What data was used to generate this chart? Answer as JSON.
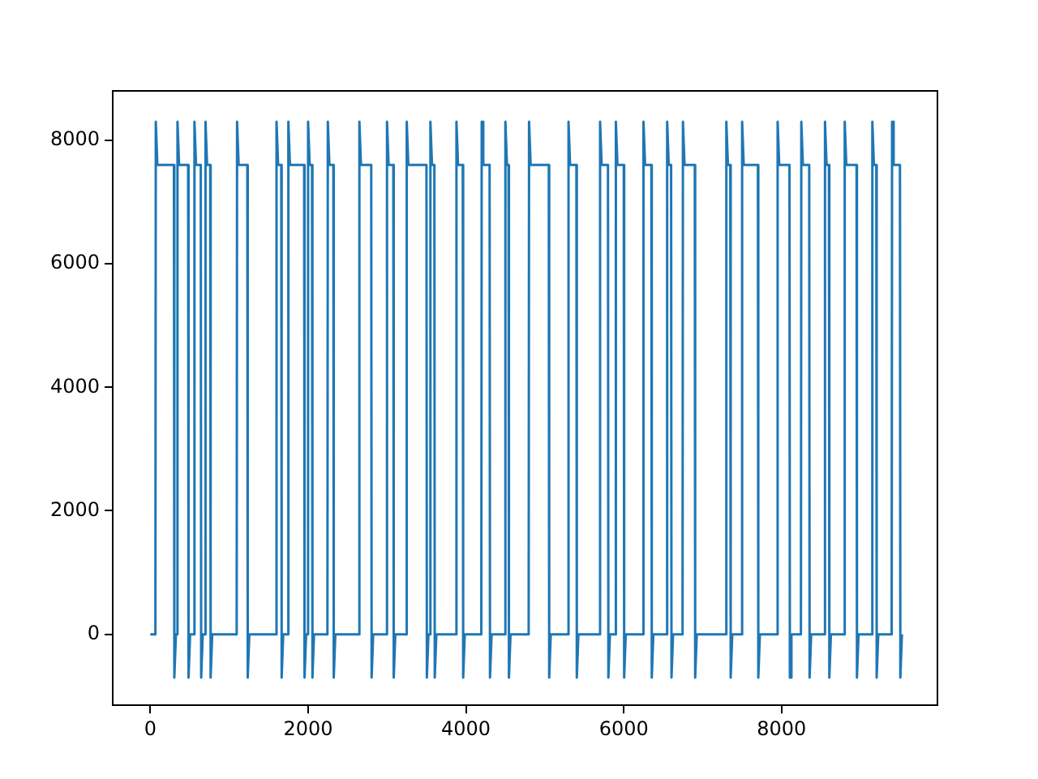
{
  "chart_data": {
    "type": "line",
    "grid": false,
    "legend": false,
    "xlim": [
      -475,
      9975
    ],
    "xticks": [
      0,
      2000,
      4000,
      6000,
      8000
    ],
    "ylim": [
      -1150,
      8800
    ],
    "yticks": [
      0,
      2000,
      4000,
      6000,
      8000
    ],
    "series": [
      {
        "color": "#1f77b4",
        "x": [
          0,
          65,
          70,
          90,
          300,
          305,
          325,
          340,
          345,
          365,
          480,
          485,
          505,
          555,
          560,
          580,
          640,
          645,
          665,
          695,
          700,
          720,
          760,
          765,
          785,
          1095,
          1100,
          1120,
          1230,
          1235,
          1255,
          1595,
          1600,
          1620,
          1660,
          1665,
          1685,
          1745,
          1750,
          1770,
          1950,
          1955,
          1975,
          1995,
          2000,
          2020,
          2050,
          2055,
          2075,
          2245,
          2250,
          2270,
          2320,
          2325,
          2345,
          2645,
          2650,
          2670,
          2800,
          2805,
          2825,
          2995,
          3000,
          3020,
          3080,
          3085,
          3105,
          3245,
          3250,
          3270,
          3500,
          3505,
          3525,
          3545,
          3550,
          3570,
          3600,
          3605,
          3625,
          3875,
          3880,
          3900,
          3960,
          3965,
          3985,
          4195,
          4200,
          4220,
          4300,
          4305,
          4325,
          4495,
          4500,
          4520,
          4540,
          4545,
          4565,
          4795,
          4800,
          4820,
          5050,
          5055,
          5075,
          5295,
          5300,
          5320,
          5400,
          5405,
          5425,
          5695,
          5700,
          5720,
          5800,
          5805,
          5825,
          5895,
          5900,
          5920,
          6000,
          6005,
          6025,
          6245,
          6250,
          6270,
          6350,
          6355,
          6375,
          6545,
          6550,
          6570,
          6600,
          6605,
          6625,
          6745,
          6750,
          6770,
          6900,
          6905,
          6925,
          7295,
          7300,
          7320,
          7350,
          7355,
          7375,
          7495,
          7500,
          7520,
          7700,
          7705,
          7725,
          7945,
          7950,
          7970,
          8100,
          8105,
          8125,
          8245,
          8250,
          8270,
          8350,
          8355,
          8375,
          8545,
          8550,
          8570,
          8600,
          8605,
          8625,
          8795,
          8800,
          8820,
          8950,
          8955,
          8975,
          9145,
          9150,
          9170,
          9200,
          9205,
          9225,
          9395,
          9400,
          9420,
          9500,
          9505,
          9525
        ],
        "values": [
          0,
          0,
          8300,
          7600,
          7600,
          -700,
          0,
          0,
          8300,
          7600,
          7600,
          -700,
          0,
          0,
          8300,
          7600,
          7600,
          -700,
          0,
          0,
          8300,
          7600,
          7600,
          -700,
          0,
          0,
          8300,
          7600,
          7600,
          -700,
          0,
          0,
          8300,
          7600,
          7600,
          -700,
          0,
          0,
          8300,
          7600,
          7600,
          -700,
          0,
          0,
          8300,
          7600,
          7600,
          -700,
          0,
          0,
          8300,
          7600,
          7600,
          -700,
          0,
          0,
          8300,
          7600,
          7600,
          -700,
          0,
          0,
          8300,
          7600,
          7600,
          -700,
          0,
          0,
          8300,
          7600,
          7600,
          -700,
          0,
          0,
          8300,
          7600,
          7600,
          -700,
          0,
          0,
          8300,
          7600,
          7600,
          -700,
          0,
          0,
          8300,
          7600,
          7600,
          -700,
          0,
          0,
          8300,
          7600,
          7600,
          -700,
          0,
          0,
          8300,
          7600,
          7600,
          -700,
          0,
          0,
          8300,
          7600,
          7600,
          -700,
          0,
          0,
          8300,
          7600,
          7600,
          -700,
          0,
          0,
          8300,
          7600,
          7600,
          -700,
          0,
          0,
          8300,
          7600,
          7600,
          -700,
          0,
          0,
          8300,
          7600,
          7600,
          -700,
          0,
          0,
          8300,
          7600,
          7600,
          -700,
          0,
          0,
          8300,
          7600,
          7600,
          -700,
          0,
          0,
          8300,
          7600,
          7600,
          -700,
          0,
          0,
          8300,
          7600,
          7600,
          -700,
          0,
          0,
          8300,
          7600,
          7600,
          -700,
          0,
          0,
          8300,
          7600,
          7600,
          -700,
          0,
          0,
          8300,
          7600,
          7600,
          -700,
          0,
          0,
          8300,
          7600,
          7600,
          -700,
          0,
          0,
          8300,
          7600,
          7600,
          -700,
          0
        ]
      }
    ]
  }
}
